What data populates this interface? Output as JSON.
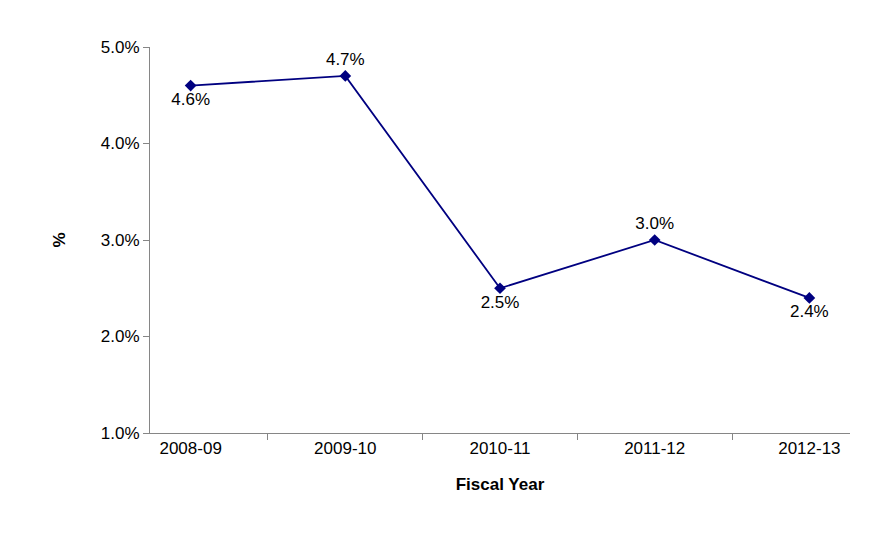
{
  "chart_data": {
    "type": "line",
    "x_label": "Fiscal Year",
    "y_label": "%",
    "categories": [
      "2008-09",
      "2009-10",
      "2010-11",
      "2011-12",
      "2012-13"
    ],
    "values": [
      4.6,
      4.7,
      2.5,
      3.0,
      2.4
    ],
    "value_labels": [
      "4.6%",
      "4.7%",
      "2.5%",
      "3.0%",
      "2.4%"
    ],
    "data_labels": true,
    "color": "#000080",
    "marker": "diamond",
    "line_style": "solid",
    "ylim": [
      1.0,
      5.0
    ],
    "yticks": [
      {
        "value": 1.0,
        "label": "1.0%"
      },
      {
        "value": 2.0,
        "label": "2.0%"
      },
      {
        "value": 3.0,
        "label": "3.0%"
      },
      {
        "value": 4.0,
        "label": "4.0%"
      },
      {
        "value": 5.0,
        "label": "5.0%"
      }
    ],
    "grid": false
  }
}
